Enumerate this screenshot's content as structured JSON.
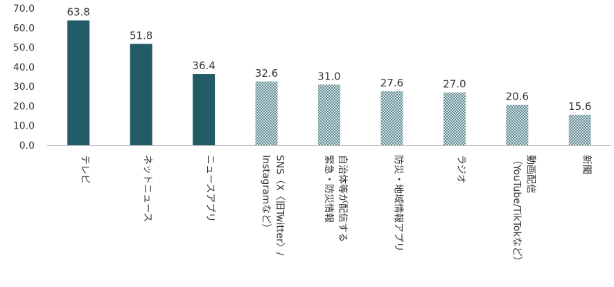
{
  "chart_data": {
    "type": "bar",
    "categories": [
      [
        "テレビ"
      ],
      [
        "ネットニュース"
      ],
      [
        "ニュースアプリ"
      ],
      [
        "SNS（X〈旧Twitter〉/",
        "Instagramなど）"
      ],
      [
        "自治体等が配信する",
        "緊急・防災情報"
      ],
      [
        "防災・地域情報アプリ"
      ],
      [
        "ラジオ"
      ],
      [
        "動画配信",
        "（YouTube/TikTokなど）"
      ],
      [
        "新聞"
      ]
    ],
    "values": [
      63.8,
      51.8,
      36.4,
      32.6,
      31.0,
      27.6,
      27.0,
      20.6,
      15.6
    ],
    "value_labels": [
      "63.8",
      "51.8",
      "36.4",
      "32.6",
      "31.0",
      "27.6",
      "27.0",
      "20.6",
      "15.6"
    ],
    "styles": [
      "solid",
      "solid",
      "solid",
      "hatched",
      "hatched",
      "hatched",
      "hatched",
      "hatched",
      "hatched"
    ],
    "yticks": [
      "0.0",
      "10.0",
      "20.0",
      "30.0",
      "40.0",
      "50.0",
      "60.0",
      "70.0"
    ],
    "ylim": [
      0,
      70
    ],
    "grid": false,
    "title": "",
    "xlabel": "",
    "ylabel": "",
    "colors": {
      "solid": "#225a66",
      "hatched": "#8fa9ae",
      "axis": "#bfbfbf"
    }
  }
}
